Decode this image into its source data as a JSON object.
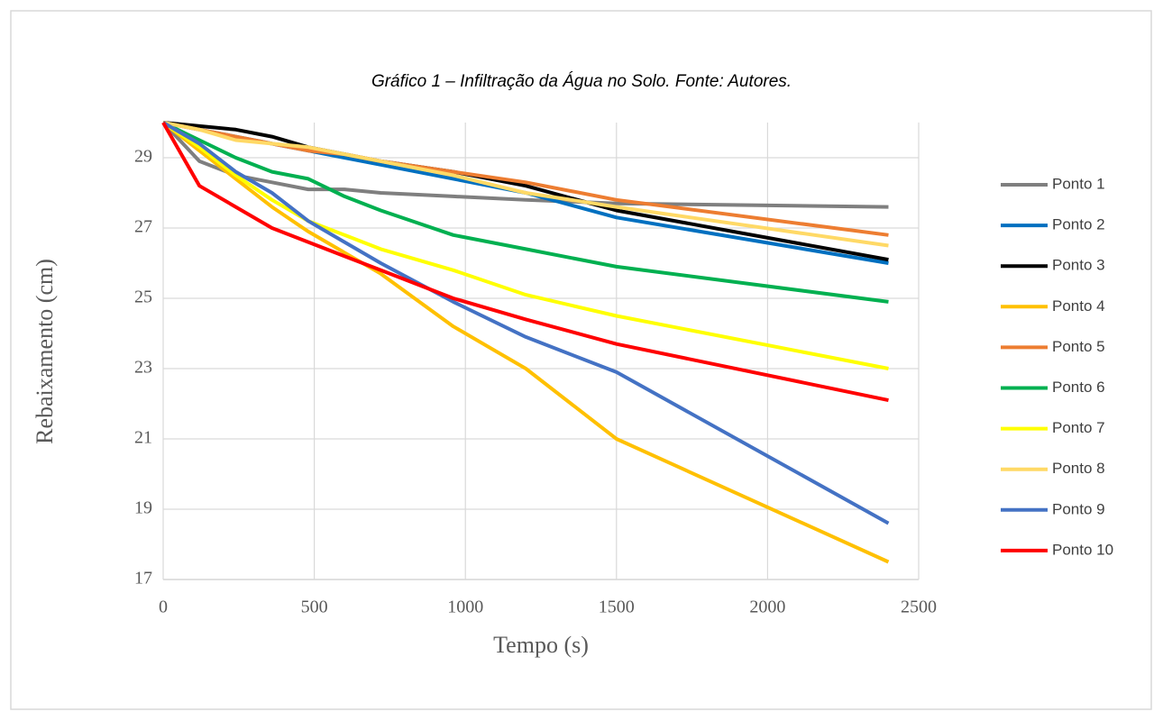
{
  "chart_data": {
    "type": "line",
    "title": "Gráfico 1 – Infiltração da Água no Solo. Fonte: Autores.",
    "x_label": "Tempo (s)",
    "y_label": "Rebaixamento (cm)",
    "x": [
      0,
      120,
      240,
      360,
      480,
      600,
      720,
      960,
      1200,
      1500,
      2400
    ],
    "xlim": [
      0,
      2500
    ],
    "xticks": [
      0,
      500,
      1000,
      1500,
      2000,
      2500
    ],
    "ylim": [
      17,
      30
    ],
    "yticks": [
      17,
      19,
      21,
      23,
      25,
      27,
      29
    ],
    "grid": true,
    "legend": "right",
    "series": [
      {
        "name": "Ponto 1",
        "color": "#7f7f7f",
        "values": [
          30,
          28.9,
          28.5,
          28.3,
          28.1,
          28.1,
          28.0,
          27.9,
          27.8,
          27.7,
          27.6
        ]
      },
      {
        "name": "Ponto 2",
        "color": "#0070c0",
        "values": [
          30,
          29.8,
          29.6,
          29.4,
          29.2,
          29.0,
          28.8,
          28.4,
          28.0,
          27.3,
          26.0
        ]
      },
      {
        "name": "Ponto 3",
        "color": "#000000",
        "values": [
          30,
          29.9,
          29.8,
          29.6,
          29.3,
          29.1,
          28.9,
          28.6,
          28.2,
          27.5,
          26.1
        ]
      },
      {
        "name": "Ponto 4",
        "color": "#ffc000",
        "values": [
          30,
          29.2,
          28.4,
          27.6,
          26.9,
          26.3,
          25.7,
          24.2,
          23.0,
          21.0,
          17.5
        ]
      },
      {
        "name": "Ponto 5",
        "color": "#ed7d31",
        "values": [
          30,
          29.8,
          29.6,
          29.4,
          29.2,
          29.1,
          28.9,
          28.6,
          28.3,
          27.8,
          26.8
        ]
      },
      {
        "name": "Ponto 6",
        "color": "#00b050",
        "values": [
          30,
          29.5,
          29.0,
          28.6,
          28.4,
          27.9,
          27.5,
          26.8,
          26.4,
          25.9,
          24.9
        ]
      },
      {
        "name": "Ponto 7",
        "color": "#ffff00",
        "values": [
          30,
          29.3,
          28.5,
          27.8,
          27.2,
          26.8,
          26.4,
          25.8,
          25.1,
          24.5,
          23.0
        ]
      },
      {
        "name": "Ponto 8",
        "color": "#ffd966",
        "values": [
          30,
          29.8,
          29.5,
          29.4,
          29.3,
          29.1,
          28.9,
          28.5,
          28.0,
          27.6,
          26.5
        ]
      },
      {
        "name": "Ponto 9",
        "color": "#4472c4",
        "values": [
          30,
          29.4,
          28.6,
          28.0,
          27.2,
          26.6,
          26.0,
          24.9,
          23.9,
          22.9,
          18.6
        ]
      },
      {
        "name": "Ponto 10",
        "color": "#ff0000",
        "values": [
          30,
          28.2,
          27.6,
          27.0,
          26.6,
          26.2,
          25.8,
          25.0,
          24.4,
          23.7,
          22.1
        ]
      }
    ]
  }
}
